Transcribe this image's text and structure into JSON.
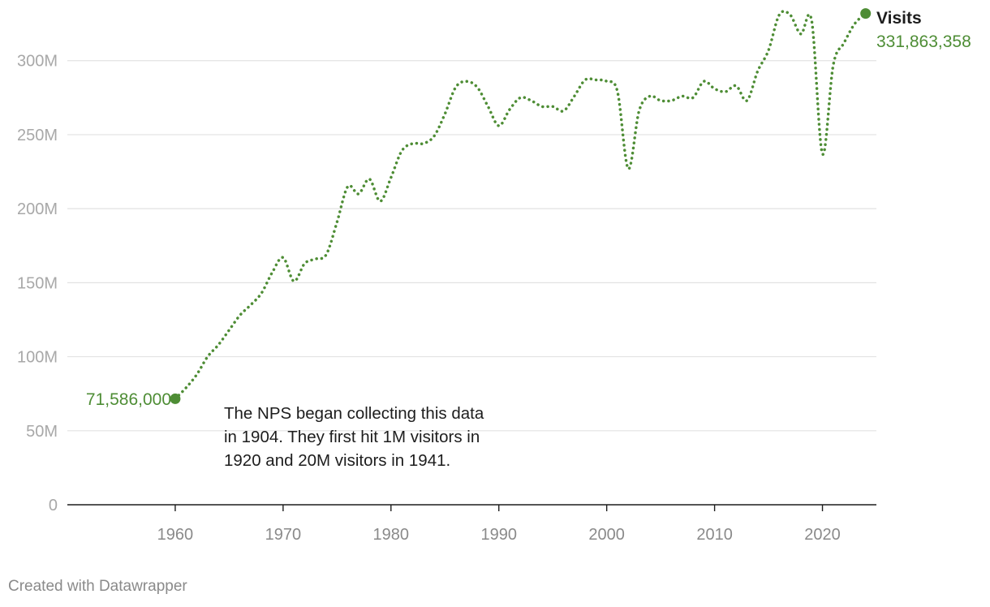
{
  "colors": {
    "series": "#4e8d35",
    "grid": "#e2e2e2",
    "axis": "#1d1d1d",
    "tick": "#a8a8a8"
  },
  "chart_data": {
    "type": "line",
    "line_style": "dotted",
    "ylim": [
      0,
      330000000
    ],
    "xlim": [
      1950,
      2025
    ],
    "y_ticks": [
      0,
      50000000,
      100000000,
      150000000,
      200000000,
      250000000,
      300000000
    ],
    "y_tick_labels": [
      "0",
      "50M",
      "100M",
      "150M",
      "200M",
      "250M",
      "300M"
    ],
    "x_ticks": [
      1960,
      1970,
      1980,
      1990,
      2000,
      2010,
      2020
    ],
    "x_tick_labels": [
      "1960",
      "1970",
      "1980",
      "1990",
      "2000",
      "2010",
      "2020"
    ],
    "grid": true,
    "series": [
      {
        "name": "Visits",
        "color": "#4e8d35",
        "x": [
          1960,
          1961,
          1962,
          1963,
          1964,
          1965,
          1966,
          1967,
          1968,
          1969,
          1970,
          1971,
          1972,
          1973,
          1974,
          1975,
          1976,
          1977,
          1978,
          1979,
          1980,
          1981,
          1982,
          1983,
          1984,
          1985,
          1986,
          1987,
          1988,
          1989,
          1990,
          1991,
          1992,
          1993,
          1994,
          1995,
          1996,
          1997,
          1998,
          1999,
          2000,
          2001,
          2002,
          2003,
          2004,
          2005,
          2006,
          2007,
          2008,
          2009,
          2010,
          2011,
          2012,
          2013,
          2014,
          2015,
          2016,
          2017,
          2018,
          2019,
          2020,
          2021,
          2022,
          2023,
          2024
        ],
        "values": [
          71586000,
          79000000,
          88000000,
          100000000,
          108000000,
          118000000,
          128000000,
          135000000,
          143000000,
          157000000,
          167000000,
          151000000,
          163000000,
          166000000,
          169000000,
          191000000,
          215000000,
          210000000,
          220000000,
          205000000,
          221000000,
          239000000,
          244000000,
          244000000,
          249000000,
          264000000,
          282000000,
          286000000,
          282000000,
          269000000,
          256000000,
          267000000,
          275000000,
          273000000,
          269000000,
          269000000,
          266000000,
          276000000,
          287000000,
          287000000,
          286000000,
          279000000,
          227000000,
          266000000,
          276000000,
          273000000,
          273000000,
          276000000,
          275000000,
          286000000,
          281000000,
          279000000,
          283000000,
          273000000,
          293000000,
          307000000,
          331000000,
          331000000,
          318000000,
          327000000,
          237000000,
          297000000,
          312000000,
          325000000,
          331863358
        ]
      }
    ],
    "end_label": "331,863,358",
    "start_label": "71,586,000",
    "annotation": [
      "The NPS began collecting this data",
      "in 1904. They first hit 1M visitors in",
      "1920 and 20M visitors in 1941."
    ]
  },
  "footer": "Created with Datawrapper"
}
